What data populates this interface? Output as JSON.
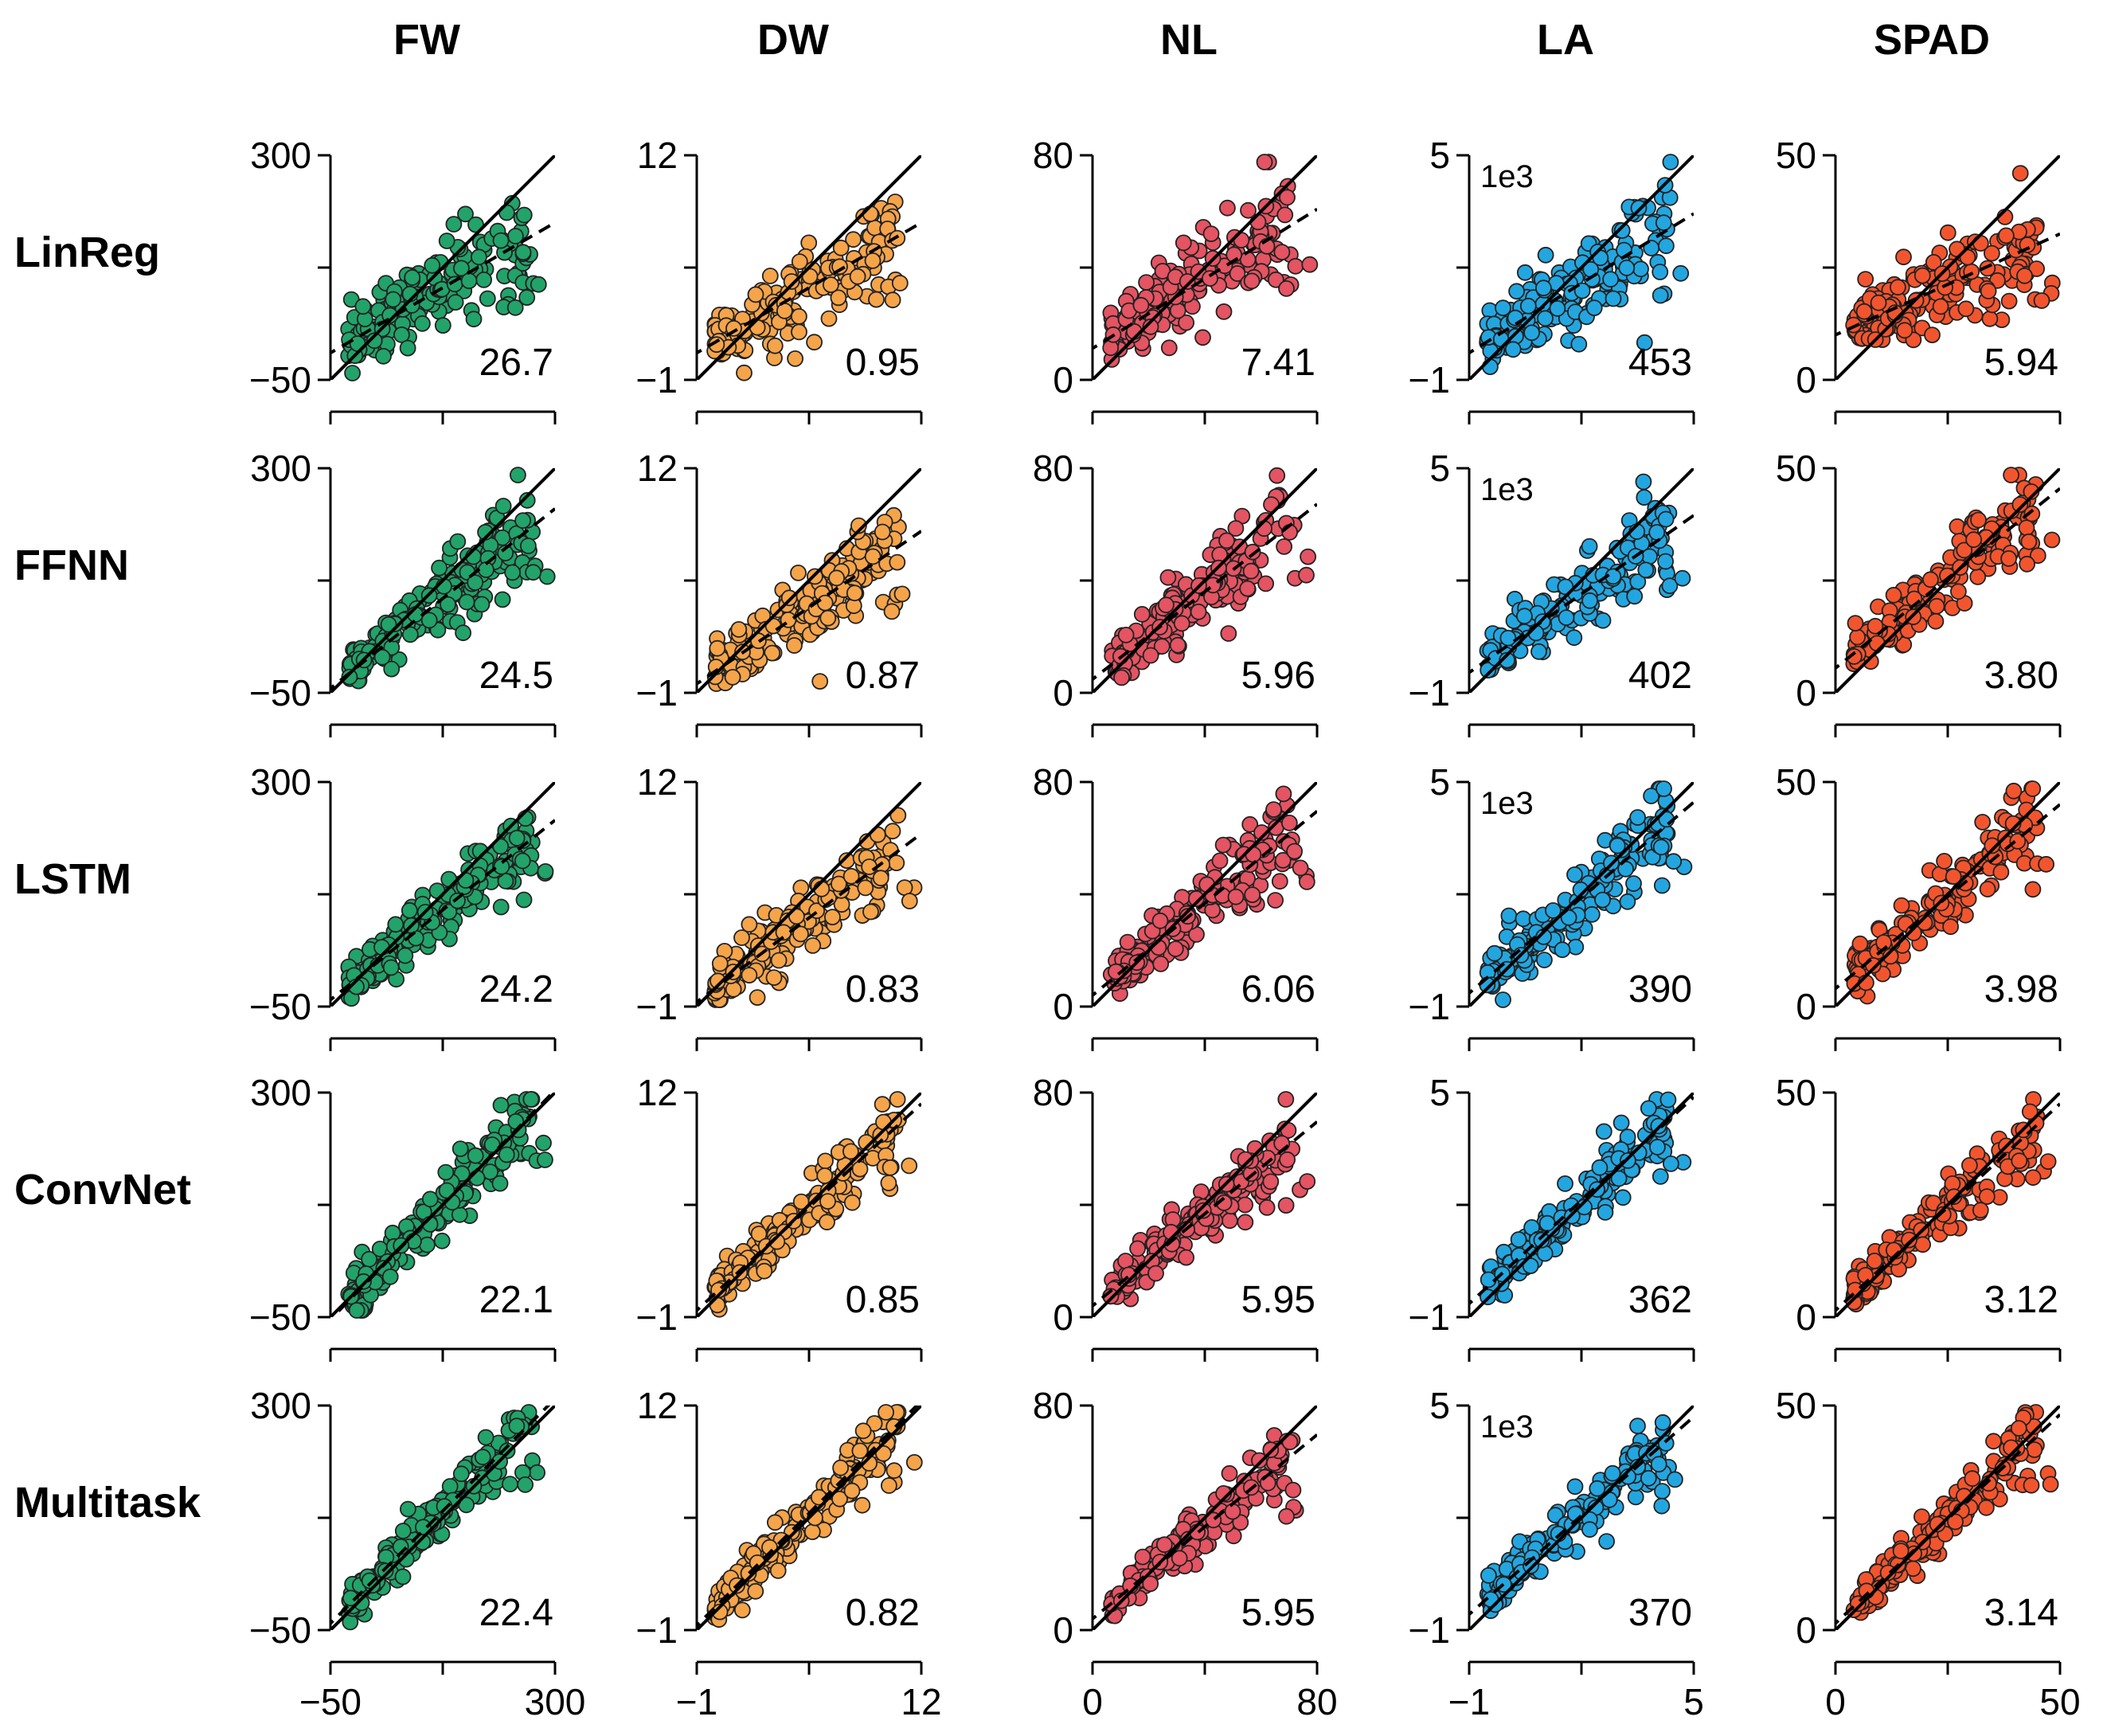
{
  "chart_data": {
    "type": "scatter",
    "layout": "5x5 grid of predicted vs. measured scatter panels",
    "columns": [
      {
        "key": "FW",
        "title": "FW",
        "color": "#22a36a",
        "range": [
          -50,
          300
        ],
        "ticks": [
          "300",
          "−50"
        ],
        "xticks": [
          "−50",
          "300"
        ],
        "scale_label": ""
      },
      {
        "key": "DW",
        "title": "DW",
        "color": "#f5a44a",
        "range": [
          -1,
          12
        ],
        "ticks": [
          "12",
          "−1"
        ],
        "xticks": [
          "−1",
          "12"
        ],
        "scale_label": ""
      },
      {
        "key": "NL",
        "title": "NL",
        "color": "#e45462",
        "range": [
          0,
          80
        ],
        "ticks": [
          "80",
          "0"
        ],
        "xticks": [
          "0",
          "80"
        ],
        "scale_label": ""
      },
      {
        "key": "LA",
        "title": "LA",
        "color": "#23a6e0",
        "range": [
          -1,
          5
        ],
        "ticks": [
          "5",
          "−1"
        ],
        "xticks": [
          "−1",
          "5"
        ],
        "scale_label": "1e3"
      },
      {
        "key": "SPAD",
        "title": "SPAD",
        "color": "#f2552e",
        "range": [
          0,
          50
        ],
        "ticks": [
          "50",
          "0"
        ],
        "xticks": [
          "0",
          "50"
        ],
        "scale_label": ""
      }
    ],
    "rows": [
      {
        "title": "LinReg",
        "rmse": [
          "26.7",
          "0.95",
          "7.41",
          "453",
          "5.94"
        ],
        "fit_slope": [
          0.58,
          0.58,
          0.62,
          0.62,
          0.45
        ],
        "fit_intercept_frac": [
          0.12,
          0.12,
          0.14,
          0.12,
          0.2
        ],
        "scale_shown": [
          false,
          false,
          false,
          true,
          false
        ],
        "spread": 0.16
      },
      {
        "title": "FFNN",
        "rmse": [
          "24.5",
          "0.87",
          "5.96",
          "402",
          "3.80"
        ],
        "fit_slope": [
          0.8,
          0.68,
          0.78,
          0.7,
          0.8
        ],
        "fit_intercept_frac": [
          0.02,
          0.04,
          0.06,
          0.09,
          0.11
        ],
        "scale_shown": [
          false,
          false,
          false,
          true,
          false
        ],
        "spread": 0.12
      },
      {
        "title": "LSTM",
        "rmse": [
          "24.2",
          "0.83",
          "6.06",
          "390",
          "3.98"
        ],
        "fit_slope": [
          0.8,
          0.75,
          0.82,
          0.85,
          0.82
        ],
        "fit_intercept_frac": [
          0.03,
          0.02,
          0.05,
          0.06,
          0.08
        ],
        "scale_shown": [
          false,
          false,
          false,
          true,
          false
        ],
        "spread": 0.12
      },
      {
        "title": "ConvNet",
        "rmse": [
          "22.1",
          "0.85",
          "5.95",
          "362",
          "3.12"
        ],
        "fit_slope": [
          1.02,
          0.92,
          0.82,
          0.92,
          0.92
        ],
        "fit_intercept_frac": [
          -0.01,
          0.03,
          0.05,
          0.06,
          0.03
        ],
        "scale_shown": [
          false,
          false,
          false,
          false,
          false
        ],
        "spread": 0.1
      },
      {
        "title": "Multitask",
        "rmse": [
          "22.4",
          "0.82",
          "5.95",
          "370",
          "3.14"
        ],
        "fit_slope": [
          1.0,
          1.0,
          0.82,
          0.88,
          0.93
        ],
        "fit_intercept_frac": [
          0.03,
          0.02,
          0.05,
          0.07,
          0.03
        ],
        "scale_shown": [
          false,
          false,
          false,
          true,
          false
        ],
        "spread": 0.09
      }
    ],
    "reference_line": "y = x (solid)",
    "fit_line": "regression fit (dashed)"
  }
}
